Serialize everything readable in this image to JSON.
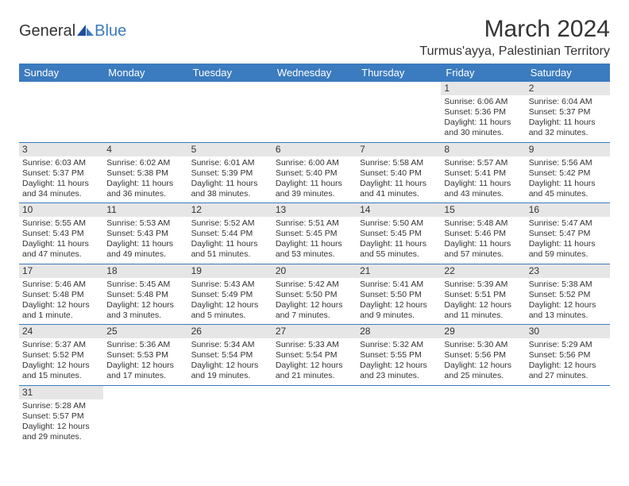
{
  "logo": {
    "general": "General",
    "blue": "Blue"
  },
  "title": "March 2024",
  "location": "Turmus'ayya, Palestinian Territory",
  "colors": {
    "header_bg": "#3b7bbf",
    "header_text": "#ffffff",
    "daynum_bg": "#e6e6e6",
    "border": "#3b7bbf",
    "text": "#333333",
    "page_bg": "#ffffff"
  },
  "dow": [
    "Sunday",
    "Monday",
    "Tuesday",
    "Wednesday",
    "Thursday",
    "Friday",
    "Saturday"
  ],
  "weeks": [
    [
      null,
      null,
      null,
      null,
      null,
      {
        "n": "1",
        "sunrise": "Sunrise: 6:06 AM",
        "sunset": "Sunset: 5:36 PM",
        "day1": "Daylight: 11 hours",
        "day2": "and 30 minutes."
      },
      {
        "n": "2",
        "sunrise": "Sunrise: 6:04 AM",
        "sunset": "Sunset: 5:37 PM",
        "day1": "Daylight: 11 hours",
        "day2": "and 32 minutes."
      }
    ],
    [
      {
        "n": "3",
        "sunrise": "Sunrise: 6:03 AM",
        "sunset": "Sunset: 5:37 PM",
        "day1": "Daylight: 11 hours",
        "day2": "and 34 minutes."
      },
      {
        "n": "4",
        "sunrise": "Sunrise: 6:02 AM",
        "sunset": "Sunset: 5:38 PM",
        "day1": "Daylight: 11 hours",
        "day2": "and 36 minutes."
      },
      {
        "n": "5",
        "sunrise": "Sunrise: 6:01 AM",
        "sunset": "Sunset: 5:39 PM",
        "day1": "Daylight: 11 hours",
        "day2": "and 38 minutes."
      },
      {
        "n": "6",
        "sunrise": "Sunrise: 6:00 AM",
        "sunset": "Sunset: 5:40 PM",
        "day1": "Daylight: 11 hours",
        "day2": "and 39 minutes."
      },
      {
        "n": "7",
        "sunrise": "Sunrise: 5:58 AM",
        "sunset": "Sunset: 5:40 PM",
        "day1": "Daylight: 11 hours",
        "day2": "and 41 minutes."
      },
      {
        "n": "8",
        "sunrise": "Sunrise: 5:57 AM",
        "sunset": "Sunset: 5:41 PM",
        "day1": "Daylight: 11 hours",
        "day2": "and 43 minutes."
      },
      {
        "n": "9",
        "sunrise": "Sunrise: 5:56 AM",
        "sunset": "Sunset: 5:42 PM",
        "day1": "Daylight: 11 hours",
        "day2": "and 45 minutes."
      }
    ],
    [
      {
        "n": "10",
        "sunrise": "Sunrise: 5:55 AM",
        "sunset": "Sunset: 5:43 PM",
        "day1": "Daylight: 11 hours",
        "day2": "and 47 minutes."
      },
      {
        "n": "11",
        "sunrise": "Sunrise: 5:53 AM",
        "sunset": "Sunset: 5:43 PM",
        "day1": "Daylight: 11 hours",
        "day2": "and 49 minutes."
      },
      {
        "n": "12",
        "sunrise": "Sunrise: 5:52 AM",
        "sunset": "Sunset: 5:44 PM",
        "day1": "Daylight: 11 hours",
        "day2": "and 51 minutes."
      },
      {
        "n": "13",
        "sunrise": "Sunrise: 5:51 AM",
        "sunset": "Sunset: 5:45 PM",
        "day1": "Daylight: 11 hours",
        "day2": "and 53 minutes."
      },
      {
        "n": "14",
        "sunrise": "Sunrise: 5:50 AM",
        "sunset": "Sunset: 5:45 PM",
        "day1": "Daylight: 11 hours",
        "day2": "and 55 minutes."
      },
      {
        "n": "15",
        "sunrise": "Sunrise: 5:48 AM",
        "sunset": "Sunset: 5:46 PM",
        "day1": "Daylight: 11 hours",
        "day2": "and 57 minutes."
      },
      {
        "n": "16",
        "sunrise": "Sunrise: 5:47 AM",
        "sunset": "Sunset: 5:47 PM",
        "day1": "Daylight: 11 hours",
        "day2": "and 59 minutes."
      }
    ],
    [
      {
        "n": "17",
        "sunrise": "Sunrise: 5:46 AM",
        "sunset": "Sunset: 5:48 PM",
        "day1": "Daylight: 12 hours",
        "day2": "and 1 minute."
      },
      {
        "n": "18",
        "sunrise": "Sunrise: 5:45 AM",
        "sunset": "Sunset: 5:48 PM",
        "day1": "Daylight: 12 hours",
        "day2": "and 3 minutes."
      },
      {
        "n": "19",
        "sunrise": "Sunrise: 5:43 AM",
        "sunset": "Sunset: 5:49 PM",
        "day1": "Daylight: 12 hours",
        "day2": "and 5 minutes."
      },
      {
        "n": "20",
        "sunrise": "Sunrise: 5:42 AM",
        "sunset": "Sunset: 5:50 PM",
        "day1": "Daylight: 12 hours",
        "day2": "and 7 minutes."
      },
      {
        "n": "21",
        "sunrise": "Sunrise: 5:41 AM",
        "sunset": "Sunset: 5:50 PM",
        "day1": "Daylight: 12 hours",
        "day2": "and 9 minutes."
      },
      {
        "n": "22",
        "sunrise": "Sunrise: 5:39 AM",
        "sunset": "Sunset: 5:51 PM",
        "day1": "Daylight: 12 hours",
        "day2": "and 11 minutes."
      },
      {
        "n": "23",
        "sunrise": "Sunrise: 5:38 AM",
        "sunset": "Sunset: 5:52 PM",
        "day1": "Daylight: 12 hours",
        "day2": "and 13 minutes."
      }
    ],
    [
      {
        "n": "24",
        "sunrise": "Sunrise: 5:37 AM",
        "sunset": "Sunset: 5:52 PM",
        "day1": "Daylight: 12 hours",
        "day2": "and 15 minutes."
      },
      {
        "n": "25",
        "sunrise": "Sunrise: 5:36 AM",
        "sunset": "Sunset: 5:53 PM",
        "day1": "Daylight: 12 hours",
        "day2": "and 17 minutes."
      },
      {
        "n": "26",
        "sunrise": "Sunrise: 5:34 AM",
        "sunset": "Sunset: 5:54 PM",
        "day1": "Daylight: 12 hours",
        "day2": "and 19 minutes."
      },
      {
        "n": "27",
        "sunrise": "Sunrise: 5:33 AM",
        "sunset": "Sunset: 5:54 PM",
        "day1": "Daylight: 12 hours",
        "day2": "and 21 minutes."
      },
      {
        "n": "28",
        "sunrise": "Sunrise: 5:32 AM",
        "sunset": "Sunset: 5:55 PM",
        "day1": "Daylight: 12 hours",
        "day2": "and 23 minutes."
      },
      {
        "n": "29",
        "sunrise": "Sunrise: 5:30 AM",
        "sunset": "Sunset: 5:56 PM",
        "day1": "Daylight: 12 hours",
        "day2": "and 25 minutes."
      },
      {
        "n": "30",
        "sunrise": "Sunrise: 5:29 AM",
        "sunset": "Sunset: 5:56 PM",
        "day1": "Daylight: 12 hours",
        "day2": "and 27 minutes."
      }
    ],
    [
      {
        "n": "31",
        "sunrise": "Sunrise: 5:28 AM",
        "sunset": "Sunset: 5:57 PM",
        "day1": "Daylight: 12 hours",
        "day2": "and 29 minutes."
      },
      null,
      null,
      null,
      null,
      null,
      null
    ]
  ]
}
